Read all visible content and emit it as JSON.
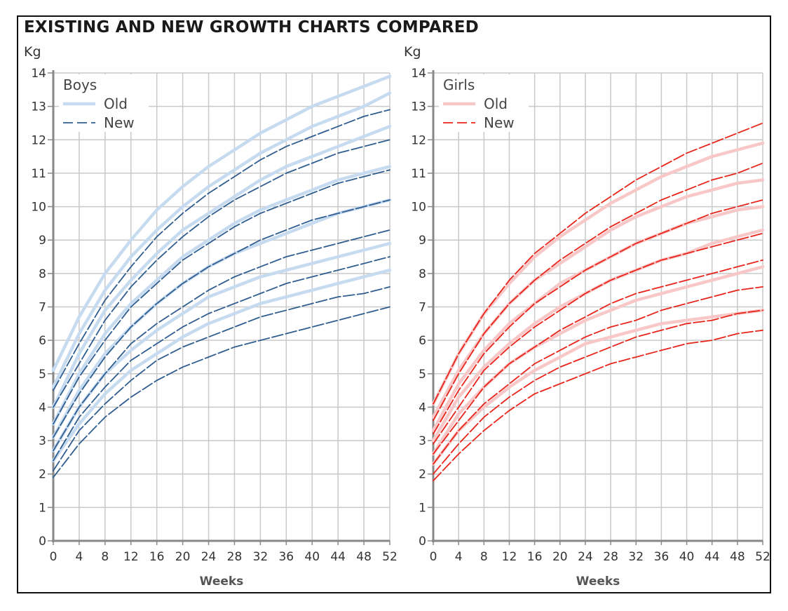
{
  "title": "EXISTING AND NEW GROWTH CHARTS COMPARED",
  "chart_data": [
    {
      "type": "line",
      "panel": "Boys",
      "ylabel": "Kg",
      "xlabel": "Weeks",
      "xlim": [
        0,
        52
      ],
      "ylim": [
        0,
        14
      ],
      "x_ticks": [
        0,
        4,
        8,
        12,
        16,
        20,
        24,
        28,
        32,
        36,
        40,
        44,
        48,
        52
      ],
      "y_ticks": [
        0,
        1,
        2,
        3,
        4,
        5,
        6,
        7,
        8,
        9,
        10,
        11,
        12,
        13,
        14
      ],
      "grid": true,
      "legend": {
        "title": "Boys",
        "position": "top-left",
        "entries": [
          "Old",
          "New"
        ]
      },
      "colors": {
        "Old": "#c7dbf0",
        "New": "#2f5d8f"
      },
      "x": [
        0,
        4,
        8,
        12,
        16,
        20,
        24,
        28,
        32,
        36,
        40,
        44,
        48,
        52
      ],
      "series": [
        {
          "name": "Old",
          "percentile_lines": [
            [
              2.4,
              3.5,
              4.4,
              5.1,
              5.6,
              6.1,
              6.5,
              6.8,
              7.1,
              7.3,
              7.5,
              7.7,
              7.9,
              8.1
            ],
            [
              2.7,
              4.0,
              5.0,
              5.7,
              6.3,
              6.8,
              7.3,
              7.6,
              7.9,
              8.1,
              8.3,
              8.5,
              8.7,
              8.9
            ],
            [
              3.1,
              4.5,
              5.6,
              6.4,
              7.1,
              7.7,
              8.2,
              8.6,
              8.9,
              9.2,
              9.5,
              9.8,
              10.0,
              10.2
            ],
            [
              3.5,
              5.0,
              6.2,
              7.1,
              7.8,
              8.5,
              9.0,
              9.5,
              9.9,
              10.2,
              10.5,
              10.8,
              11.0,
              11.2
            ],
            [
              4.0,
              5.6,
              6.9,
              7.8,
              8.6,
              9.3,
              9.8,
              10.3,
              10.8,
              11.2,
              11.5,
              11.8,
              12.1,
              12.4
            ],
            [
              4.6,
              6.2,
              7.5,
              8.5,
              9.3,
              10.0,
              10.6,
              11.1,
              11.6,
              12.0,
              12.4,
              12.7,
              13.0,
              13.4
            ],
            [
              5.1,
              6.7,
              8.0,
              9.0,
              9.9,
              10.6,
              11.2,
              11.7,
              12.2,
              12.6,
              13.0,
              13.3,
              13.6,
              13.9
            ]
          ]
        },
        {
          "name": "New",
          "percentile_lines": [
            [
              1.9,
              2.9,
              3.7,
              4.3,
              4.8,
              5.2,
              5.5,
              5.8,
              6.0,
              6.2,
              6.4,
              6.6,
              6.8,
              7.0
            ],
            [
              2.1,
              3.3,
              4.1,
              4.8,
              5.4,
              5.8,
              6.1,
              6.4,
              6.7,
              6.9,
              7.1,
              7.3,
              7.4,
              7.6
            ],
            [
              2.4,
              3.7,
              4.6,
              5.4,
              5.9,
              6.4,
              6.8,
              7.1,
              7.4,
              7.7,
              7.9,
              8.1,
              8.3,
              8.5
            ],
            [
              2.7,
              4.0,
              5.0,
              5.9,
              6.5,
              7.0,
              7.5,
              7.9,
              8.2,
              8.5,
              8.7,
              8.9,
              9.1,
              9.3
            ],
            [
              3.1,
              4.4,
              5.5,
              6.4,
              7.1,
              7.7,
              8.2,
              8.6,
              9.0,
              9.3,
              9.6,
              9.8,
              10.0,
              10.2
            ],
            [
              3.5,
              4.9,
              6.0,
              7.0,
              7.7,
              8.4,
              8.9,
              9.4,
              9.8,
              10.1,
              10.4,
              10.7,
              10.9,
              11.1
            ],
            [
              4.0,
              5.3,
              6.6,
              7.6,
              8.4,
              9.1,
              9.7,
              10.2,
              10.6,
              11.0,
              11.3,
              11.6,
              11.8,
              12.0
            ],
            [
              4.5,
              5.9,
              7.2,
              8.2,
              9.1,
              9.8,
              10.4,
              10.9,
              11.4,
              11.8,
              12.1,
              12.4,
              12.7,
              12.9
            ]
          ]
        }
      ]
    },
    {
      "type": "line",
      "panel": "Girls",
      "ylabel": "Kg",
      "xlabel": "Weeks",
      "xlim": [
        0,
        52
      ],
      "ylim": [
        0,
        14
      ],
      "x_ticks": [
        0,
        4,
        8,
        12,
        16,
        20,
        24,
        28,
        32,
        36,
        40,
        44,
        48,
        52
      ],
      "y_ticks": [
        0,
        1,
        2,
        3,
        4,
        5,
        6,
        7,
        8,
        9,
        10,
        11,
        12,
        13,
        14
      ],
      "grid": true,
      "legend": {
        "title": "Girls",
        "position": "top-left",
        "entries": [
          "Old",
          "New"
        ]
      },
      "colors": {
        "Old": "#f8c8c8",
        "New": "#e8241a"
      },
      "x": [
        0,
        4,
        8,
        12,
        16,
        20,
        24,
        28,
        32,
        36,
        40,
        44,
        48,
        52
      ],
      "series": [
        {
          "name": "Old",
          "percentile_lines": [
            [
              2.3,
              3.3,
              4.0,
              4.6,
              5.1,
              5.5,
              5.9,
              6.1,
              6.3,
              6.5,
              6.6,
              6.7,
              6.8,
              6.9
            ],
            [
              2.6,
              3.8,
              4.6,
              5.3,
              5.8,
              6.2,
              6.6,
              6.9,
              7.2,
              7.4,
              7.6,
              7.8,
              8.0,
              8.2
            ],
            [
              3.0,
              4.3,
              5.2,
              5.9,
              6.5,
              7.0,
              7.4,
              7.8,
              8.1,
              8.4,
              8.6,
              8.9,
              9.1,
              9.3
            ],
            [
              3.3,
              4.7,
              5.7,
              6.5,
              7.1,
              7.7,
              8.1,
              8.5,
              8.9,
              9.2,
              9.5,
              9.7,
              9.9,
              10.0
            ],
            [
              3.7,
              5.1,
              6.2,
              7.1,
              7.8,
              8.3,
              8.8,
              9.3,
              9.7,
              10.0,
              10.3,
              10.5,
              10.7,
              10.8
            ],
            [
              4.1,
              5.6,
              6.8,
              7.7,
              8.5,
              9.1,
              9.6,
              10.1,
              10.5,
              10.9,
              11.2,
              11.5,
              11.7,
              11.9
            ]
          ]
        },
        {
          "name": "New",
          "percentile_lines": [
            [
              1.8,
              2.6,
              3.3,
              3.9,
              4.4,
              4.7,
              5.0,
              5.3,
              5.5,
              5.7,
              5.9,
              6.0,
              6.2,
              6.3
            ],
            [
              2.0,
              2.9,
              3.7,
              4.3,
              4.8,
              5.2,
              5.5,
              5.8,
              6.1,
              6.3,
              6.5,
              6.6,
              6.8,
              6.9
            ],
            [
              2.3,
              3.3,
              4.1,
              4.7,
              5.3,
              5.7,
              6.1,
              6.4,
              6.6,
              6.9,
              7.1,
              7.3,
              7.5,
              7.6
            ],
            [
              2.6,
              3.6,
              4.6,
              5.3,
              5.8,
              6.3,
              6.7,
              7.1,
              7.4,
              7.6,
              7.8,
              8.0,
              8.2,
              8.4
            ],
            [
              2.9,
              4.0,
              5.1,
              5.8,
              6.4,
              6.9,
              7.4,
              7.8,
              8.1,
              8.4,
              8.6,
              8.8,
              9.0,
              9.2
            ],
            [
              3.2,
              4.5,
              5.6,
              6.4,
              7.1,
              7.6,
              8.1,
              8.5,
              8.9,
              9.2,
              9.5,
              9.8,
              10.0,
              10.2
            ],
            [
              3.6,
              5.0,
              6.2,
              7.1,
              7.8,
              8.4,
              8.9,
              9.4,
              9.8,
              10.2,
              10.5,
              10.8,
              11.0,
              11.3
            ],
            [
              4.1,
              5.6,
              6.8,
              7.8,
              8.6,
              9.2,
              9.8,
              10.3,
              10.8,
              11.2,
              11.6,
              11.9,
              12.2,
              12.5
            ]
          ]
        }
      ]
    }
  ]
}
